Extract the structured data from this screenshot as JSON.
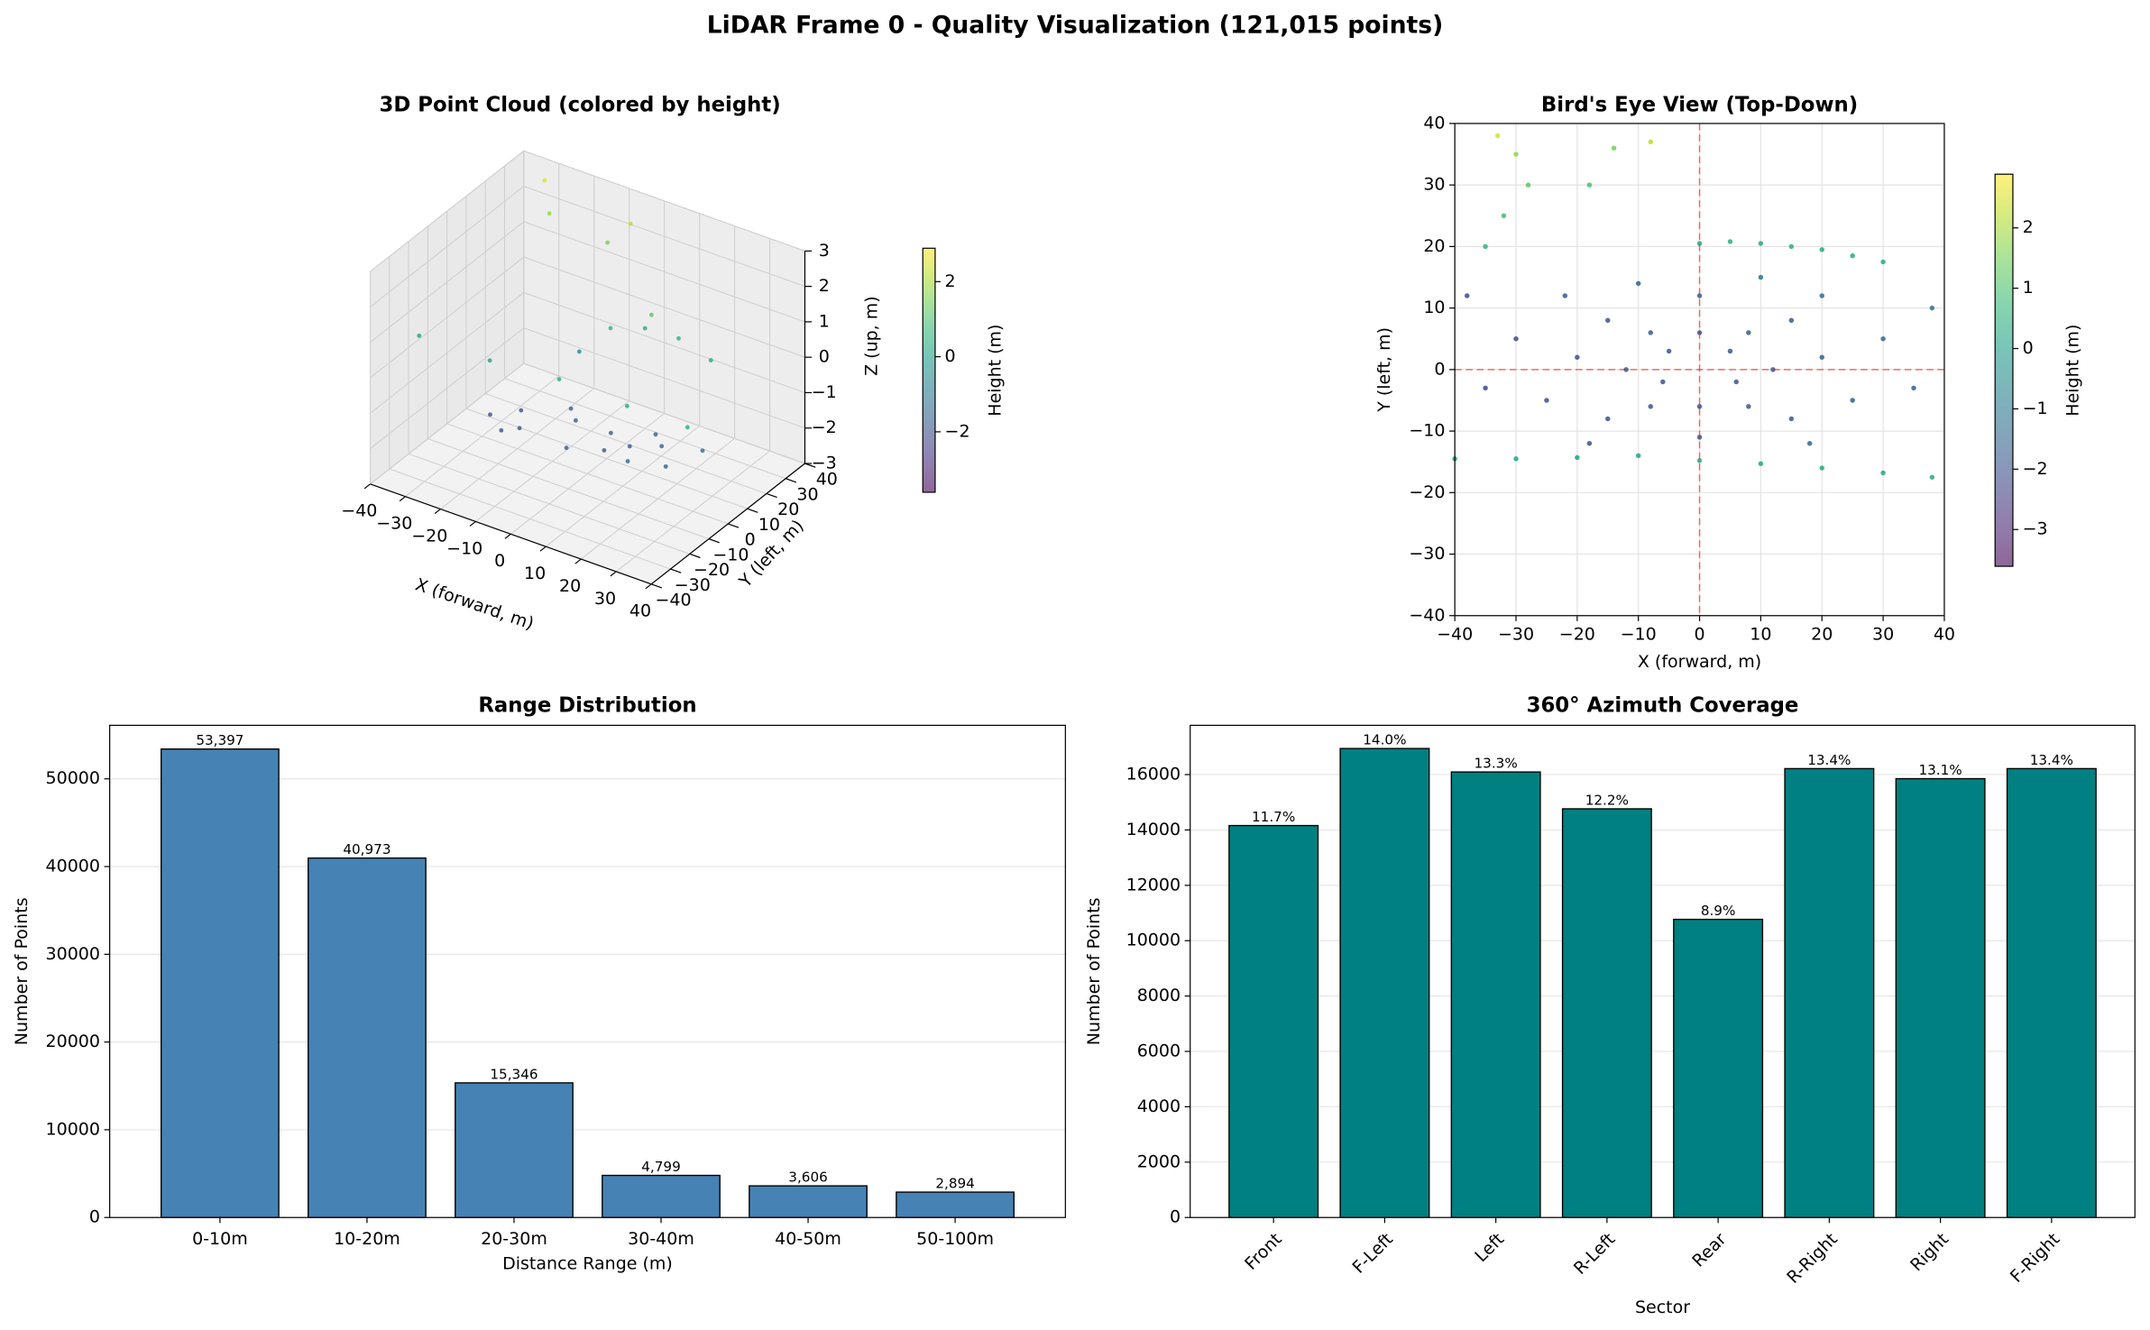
{
  "title": "LiDAR Frame 0 - Quality Visualization (121,015 points)",
  "chart_data": [
    {
      "type": "scatter3d",
      "title": "3D Point Cloud (colored by height)",
      "xlabel": "X (forward, m)",
      "ylabel": "Y (left, m)",
      "zlabel": "Z (up, m)",
      "x": [
        5,
        -5,
        8,
        -8,
        12,
        0,
        15,
        -15,
        20,
        -20,
        25,
        -25,
        30,
        18,
        -18,
        -40,
        -20,
        0,
        20,
        38,
        5,
        15,
        25,
        -30,
        -14,
        -8,
        -33,
        10,
        0,
        -10
      ],
      "y": [
        3,
        3,
        -6,
        6,
        0,
        -11,
        8,
        -8,
        2,
        2,
        -5,
        -5,
        5,
        -12,
        -12,
        -14.5,
        -14.3,
        -14.8,
        -16,
        -17.5,
        20.8,
        20,
        18.5,
        35,
        36,
        37,
        38,
        15,
        12,
        14
      ],
      "z": [
        -1.8,
        -1.8,
        -1.8,
        -1.7,
        -1.8,
        -1.8,
        -1.7,
        -1.9,
        -1.6,
        -2,
        -1.7,
        -2,
        -1.5,
        -1.5,
        -1.9,
        0.1,
        0.1,
        0.3,
        0.3,
        0.4,
        0.4,
        0.5,
        0.3,
        1.8,
        1.5,
        2.2,
        2.5,
        1.2,
        0.6,
        -0.5
      ],
      "xlim": [
        -40,
        40
      ],
      "ylim": [
        -40,
        40
      ],
      "zlim": [
        -3,
        3
      ],
      "xticks": [
        {
          "value": -40,
          "label": "−40"
        },
        {
          "value": -30,
          "label": "−30"
        },
        {
          "value": -20,
          "label": "−20"
        },
        {
          "value": -10,
          "label": "−10"
        },
        0,
        10,
        20,
        30,
        40
      ],
      "yticks": [
        {
          "value": -40,
          "label": "−40"
        },
        {
          "value": -30,
          "label": "−30"
        },
        {
          "value": -20,
          "label": "−20"
        },
        {
          "value": -10,
          "label": "−10"
        },
        0,
        10,
        20,
        30,
        40
      ],
      "zticks": [
        {
          "value": -3,
          "label": "−3"
        },
        {
          "value": -2,
          "label": "−2"
        },
        {
          "value": -1,
          "label": "−1"
        },
        0,
        1,
        2,
        3
      ],
      "colormap": "viridis",
      "clim": [
        -3.61,
        2.89
      ],
      "colorbar_label": "Height (m)",
      "colorbar_ticks": [
        {
          "value": -2,
          "label": "−2"
        },
        0,
        2
      ]
    },
    {
      "type": "scatter",
      "title": "Bird's Eye View (Top-Down)",
      "xlabel": "X (forward, m)",
      "ylabel": "Y (left, m)",
      "x": [
        5,
        -5,
        6,
        -6,
        0,
        0,
        8,
        -8,
        8,
        -8,
        12,
        -12,
        0,
        0,
        15,
        -15,
        15,
        -15,
        20,
        -20,
        25,
        -25,
        30,
        -30,
        35,
        -35,
        10,
        -10,
        20,
        -22,
        18,
        -18,
        38,
        -38,
        -40,
        -30,
        -20,
        -10,
        0,
        10,
        20,
        30,
        38,
        0,
        5,
        10,
        15,
        20,
        25,
        30,
        -30,
        -28,
        -32,
        -35,
        -14,
        -18,
        -8,
        -33
      ],
      "y": [
        3,
        3,
        -2,
        -2,
        6,
        -6,
        6,
        6,
        -6,
        -6,
        0,
        0,
        12,
        -11,
        8,
        8,
        -8,
        -8,
        2,
        2,
        -5,
        -5,
        5,
        5,
        -3,
        -3,
        15,
        14,
        12,
        12,
        -12,
        -12,
        10,
        12,
        -14.5,
        -14.5,
        -14.3,
        -14,
        -14.8,
        -15.3,
        -16,
        -16.8,
        -17.5,
        20.5,
        20.8,
        20.5,
        20,
        19.5,
        18.5,
        17.5,
        35,
        30,
        25,
        20,
        36,
        30,
        37,
        38
      ],
      "c": [
        -1.8,
        -1.8,
        -1.9,
        -1.9,
        -1.8,
        -1.9,
        -1.7,
        -1.7,
        -1.8,
        -1.8,
        -1.8,
        -1.8,
        -1.6,
        -1.8,
        -1.7,
        -1.9,
        -1.8,
        -1.9,
        -1.6,
        -2,
        -1.7,
        -2,
        -1.5,
        -2.1,
        -1.6,
        -2.2,
        -1.2,
        -1.6,
        -1.3,
        -1.8,
        -1.5,
        -1.9,
        -1.2,
        -2,
        0.1,
        0.2,
        0.1,
        0.2,
        0.3,
        0.2,
        0.3,
        0.2,
        0.4,
        0.3,
        0.4,
        0.3,
        0.5,
        0.4,
        0.3,
        0.4,
        1.8,
        1.2,
        0.9,
        0.6,
        1.5,
        1.0,
        2.2,
        2.5
      ],
      "xlim": [
        -40,
        40
      ],
      "ylim": [
        -40,
        40
      ],
      "xticks": [
        {
          "value": -40,
          "label": "−40"
        },
        {
          "value": -30,
          "label": "−30"
        },
        {
          "value": -20,
          "label": "−20"
        },
        {
          "value": -10,
          "label": "−10"
        },
        0,
        10,
        20,
        30,
        40
      ],
      "yticks": [
        {
          "value": -40,
          "label": "−40"
        },
        {
          "value": -30,
          "label": "−30"
        },
        {
          "value": -20,
          "label": "−20"
        },
        {
          "value": -10,
          "label": "−10"
        },
        0,
        10,
        20,
        30,
        40
      ],
      "grid": true,
      "hlines": [
        0
      ],
      "vlines": [
        0
      ],
      "ref_color": "#e41a1c",
      "colormap": "viridis",
      "clim": [
        -3.61,
        2.89
      ],
      "colorbar_label": "Height (m)",
      "colorbar_ticks": [
        {
          "value": -3,
          "label": "−3"
        },
        {
          "value": -2,
          "label": "−2"
        },
        {
          "value": -1,
          "label": "−1"
        },
        0,
        1,
        2
      ]
    },
    {
      "type": "bar",
      "title": "Range Distribution",
      "xlabel": "Distance Range (m)",
      "ylabel": "Number of Points",
      "categories": [
        "0-10m",
        "10-20m",
        "20-30m",
        "30-40m",
        "40-50m",
        "50-100m"
      ],
      "values": [
        53397,
        40973,
        15346,
        4799,
        3606,
        2894
      ],
      "value_labels": [
        "53,397",
        "40,973",
        "15,346",
        "4,799",
        "3,606",
        "2,894"
      ],
      "color": "#4682b4",
      "ylim": [
        0,
        56100
      ],
      "yticks": [
        0,
        10000,
        20000,
        30000,
        40000,
        50000
      ],
      "grid": true
    },
    {
      "type": "bar",
      "title": "360° Azimuth Coverage",
      "xlabel": "Sector",
      "ylabel": "Number of Points",
      "categories": [
        "Front",
        "F-Left",
        "Left",
        "R-Left",
        "Rear",
        "R-Right",
        "Right",
        "F-Right"
      ],
      "values": [
        14159,
        16942,
        16095,
        14764,
        10770,
        16216,
        15853,
        16216
      ],
      "bar_labels": [
        "11.7%",
        "14.0%",
        "13.3%",
        "12.2%",
        "8.9%",
        "13.4%",
        "13.1%",
        "13.4%"
      ],
      "color": "#008080",
      "ylim": [
        0,
        17780
      ],
      "yticks": [
        0,
        2000,
        4000,
        6000,
        8000,
        10000,
        12000,
        14000,
        16000
      ],
      "grid": true,
      "xtick_rotation": 45
    }
  ]
}
